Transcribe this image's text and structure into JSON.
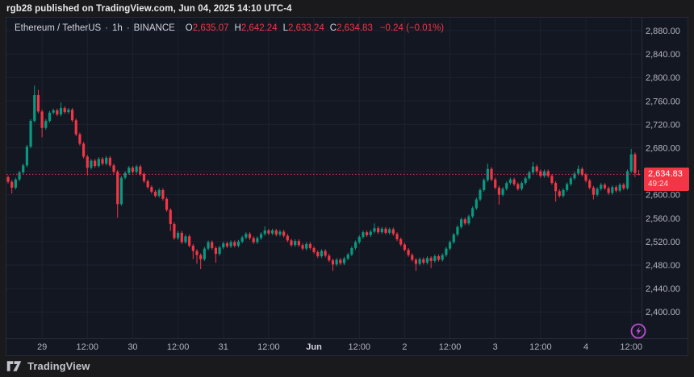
{
  "topbar": {
    "publish_info": "rgb28 published on TradingView.com, Jun 04, 2025 14:10 UTC-4"
  },
  "header": {
    "symbol": "Ethereum / TetherUS",
    "dot": "·",
    "interval": "1h",
    "exchange": "BINANCE",
    "ohlc": {
      "o_label": "O",
      "o": "2,635.07",
      "h_label": "H",
      "h": "2,642.24",
      "l_label": "L",
      "l": "2,633.24",
      "c_label": "C",
      "c": "2,634.83",
      "change": "−0.24 (−0.01%)"
    }
  },
  "price_badge": {
    "price": "2,634.83",
    "countdown": "49:24"
  },
  "footer": {
    "brand": "TradingView"
  },
  "chart_data": {
    "type": "candlestick",
    "title": "Ethereum / TetherUS · 1h · BINANCE",
    "interval": "1h",
    "time_start": "2025-05-28 15:00",
    "time_end": "2025-06-04 14:00",
    "note": "open[i] = close[i-1]; closes estimated from pixels; last candle uses exact displayed OHLC",
    "first_open": 2630,
    "closes": [
      2622,
      2612,
      2626,
      2638,
      2650,
      2682,
      2726,
      2770,
      2742,
      2714,
      2726,
      2740,
      2744,
      2737,
      2748,
      2741,
      2745,
      2727,
      2703,
      2687,
      2665,
      2646,
      2658,
      2649,
      2661,
      2653,
      2663,
      2650,
      2639,
      2584,
      2629,
      2637,
      2646,
      2639,
      2648,
      2635,
      2623,
      2613,
      2605,
      2598,
      2608,
      2593,
      2574,
      2550,
      2526,
      2535,
      2519,
      2529,
      2513,
      2504,
      2497,
      2490,
      2508,
      2519,
      2509,
      2499,
      2510,
      2517,
      2512,
      2519,
      2513,
      2520,
      2527,
      2533,
      2526,
      2519,
      2526,
      2533,
      2539,
      2534,
      2539,
      2532,
      2537,
      2530,
      2522,
      2514,
      2521,
      2514,
      2508,
      2516,
      2509,
      2502,
      2495,
      2504,
      2496,
      2488,
      2481,
      2489,
      2483,
      2491,
      2498,
      2509,
      2519,
      2528,
      2536,
      2531,
      2537,
      2543,
      2536,
      2542,
      2535,
      2541,
      2533,
      2524,
      2515,
      2506,
      2497,
      2489,
      2482,
      2490,
      2484,
      2492,
      2487,
      2495,
      2489,
      2497,
      2508,
      2519,
      2532,
      2545,
      2558,
      2551,
      2563,
      2577,
      2592,
      2608,
      2625,
      2644,
      2626,
      2612,
      2600,
      2610,
      2620,
      2626,
      2618,
      2610,
      2620,
      2628,
      2638,
      2648,
      2640,
      2632,
      2640,
      2632,
      2620,
      2606,
      2598,
      2608,
      2618,
      2628,
      2636,
      2644,
      2634,
      2624,
      2612,
      2600,
      2610,
      2617,
      2611,
      2603,
      2613,
      2607,
      2617,
      2611,
      2640,
      2669,
      2637,
      2634.83
    ],
    "default_wick_extension": 3,
    "wick_high": {
      "7": 2786,
      "8": 2779,
      "14": 2757,
      "68": 2546,
      "97": 2551,
      "127": 2653,
      "139": 2656,
      "151": 2650,
      "165": 2678
    },
    "wick_low": {
      "1": 2602,
      "9": 2698,
      "21": 2633,
      "29": 2561,
      "43": 2538,
      "49": 2490,
      "50": 2482,
      "51": 2473,
      "55": 2484,
      "86": 2470,
      "108": 2470,
      "112": 2475,
      "130": 2583,
      "145": 2588,
      "155": 2592,
      "166": 2630
    },
    "last_candle": {
      "open": 2635.07,
      "high": 2642.24,
      "low": 2633.24,
      "close": 2634.83
    },
    "current_price": 2634.83,
    "countdown": "49:24",
    "ylim": [
      2355,
      2902
    ],
    "colors": {
      "up": "#089981",
      "down": "#f23645",
      "grid": "#1e2230",
      "axis_text": "#b2b5be",
      "axis_text_bold": "#d1d4dc",
      "separator": "#2a2e39",
      "background": "#131722",
      "price_line": "#f23645",
      "badge": "#f23645",
      "flash_icon": "#bb4fd1"
    },
    "price_axis": {
      "labels": [
        {
          "value": 2880,
          "label": "2,880.00"
        },
        {
          "value": 2840,
          "label": "2,840.00"
        },
        {
          "value": 2800,
          "label": "2,800.00"
        },
        {
          "value": 2760,
          "label": "2,760.00"
        },
        {
          "value": 2720,
          "label": "2,720.00"
        },
        {
          "value": 2680,
          "label": "2,680.00"
        },
        {
          "value": 2640,
          "label": "2,640.00"
        },
        {
          "value": 2600,
          "label": "2,600.00"
        },
        {
          "value": 2560,
          "label": "2,560.00"
        },
        {
          "value": 2520,
          "label": "2,520.00"
        },
        {
          "value": 2480,
          "label": "2,480.00"
        },
        {
          "value": 2440,
          "label": "2,440.00"
        },
        {
          "value": 2400,
          "label": "2,400.00"
        }
      ]
    },
    "time_axis": {
      "ticks": [
        {
          "label": "29",
          "h": 9,
          "bold": false
        },
        {
          "label": "12:00",
          "h": 21,
          "bold": false
        },
        {
          "label": "30",
          "h": 33,
          "bold": false
        },
        {
          "label": "12:00",
          "h": 45,
          "bold": false
        },
        {
          "label": "31",
          "h": 57,
          "bold": false
        },
        {
          "label": "12:00",
          "h": 69,
          "bold": false
        },
        {
          "label": "Jun",
          "h": 81,
          "bold": true
        },
        {
          "label": "12:00",
          "h": 93,
          "bold": false
        },
        {
          "label": "2",
          "h": 105,
          "bold": false
        },
        {
          "label": "12:00",
          "h": 117,
          "bold": false
        },
        {
          "label": "3",
          "h": 129,
          "bold": false
        },
        {
          "label": "12:00",
          "h": 141,
          "bold": false
        },
        {
          "label": "4",
          "h": 153,
          "bold": false
        },
        {
          "label": "12:00",
          "h": 165,
          "bold": false
        }
      ]
    }
  }
}
